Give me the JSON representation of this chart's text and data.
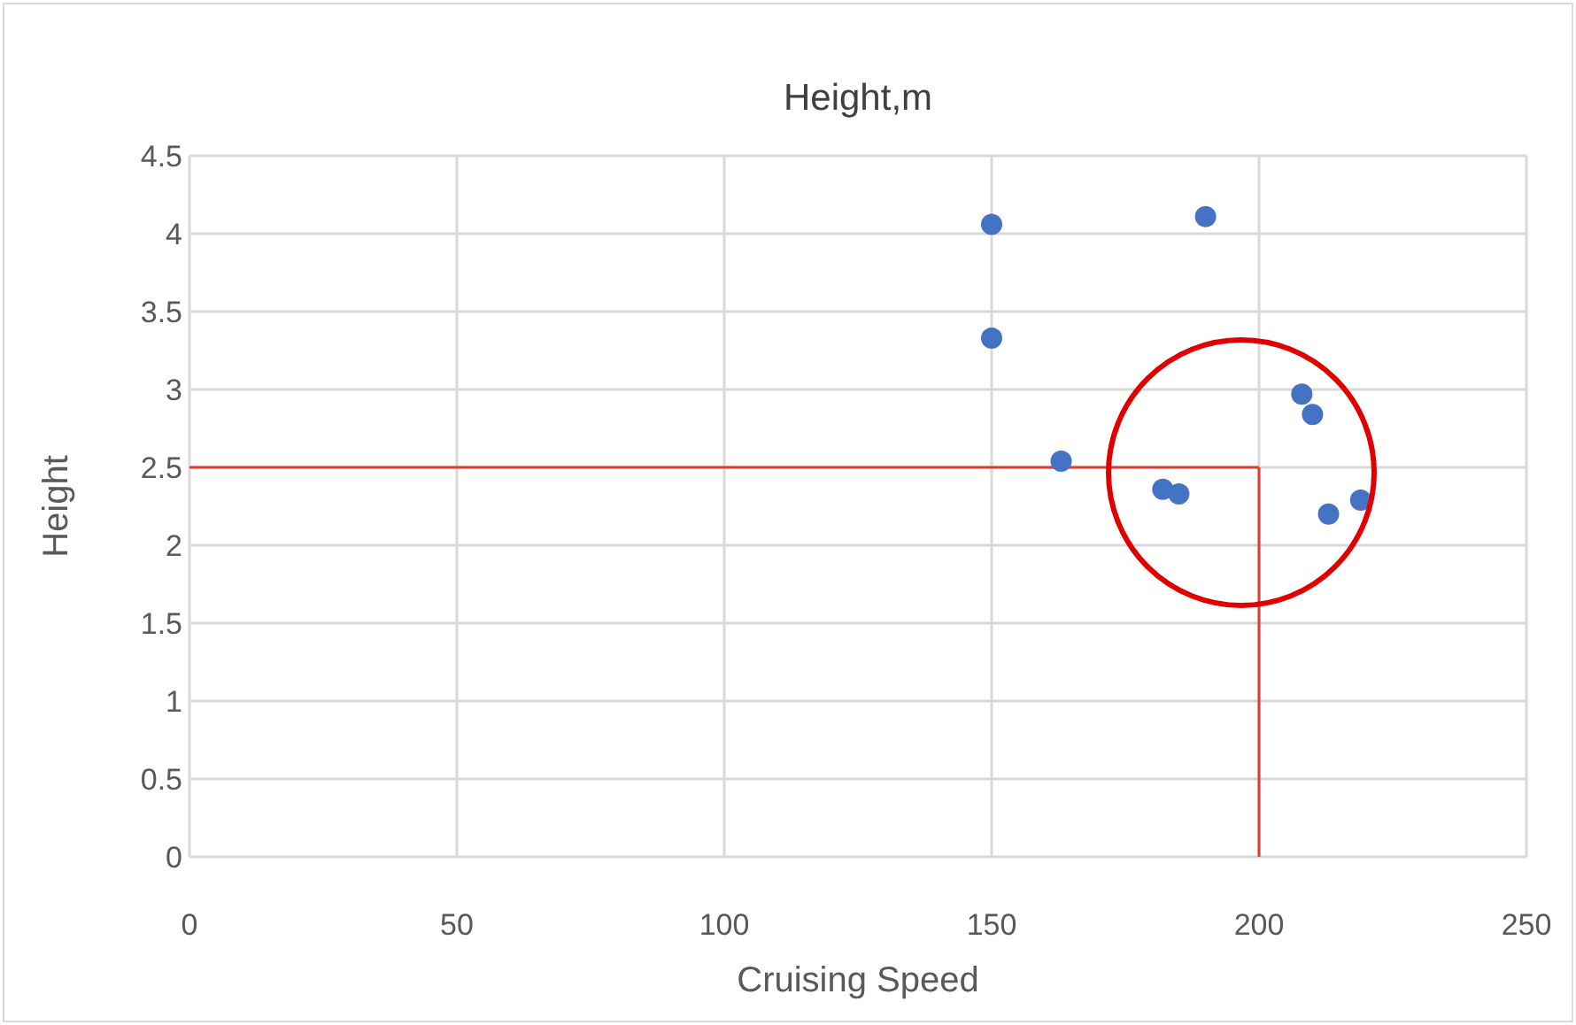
{
  "chart_data": {
    "type": "scatter",
    "title": "Height,m",
    "xlabel": "Cruising Speed",
    "ylabel": "Height",
    "x": [
      150,
      150,
      190,
      163,
      182,
      185,
      208,
      210,
      213,
      219
    ],
    "values": [
      4.06,
      3.33,
      4.11,
      2.54,
      2.36,
      2.33,
      2.97,
      2.84,
      2.2,
      2.29
    ],
    "color": "#4472c4",
    "marker": "circle",
    "xlim": [
      0,
      250
    ],
    "xticks": [
      0,
      50,
      100,
      150,
      200,
      250
    ],
    "ylim": [
      0,
      4.5
    ],
    "yticks": [
      0,
      0.5,
      1,
      1.5,
      2,
      2.5,
      3,
      3.5,
      4,
      4.5
    ],
    "grid": true,
    "ref_lines": [
      {
        "axis": "y",
        "value": 2.5,
        "color": "#e03c31"
      },
      {
        "axis": "x",
        "value": 200,
        "color": "#e03c31"
      }
    ]
  }
}
